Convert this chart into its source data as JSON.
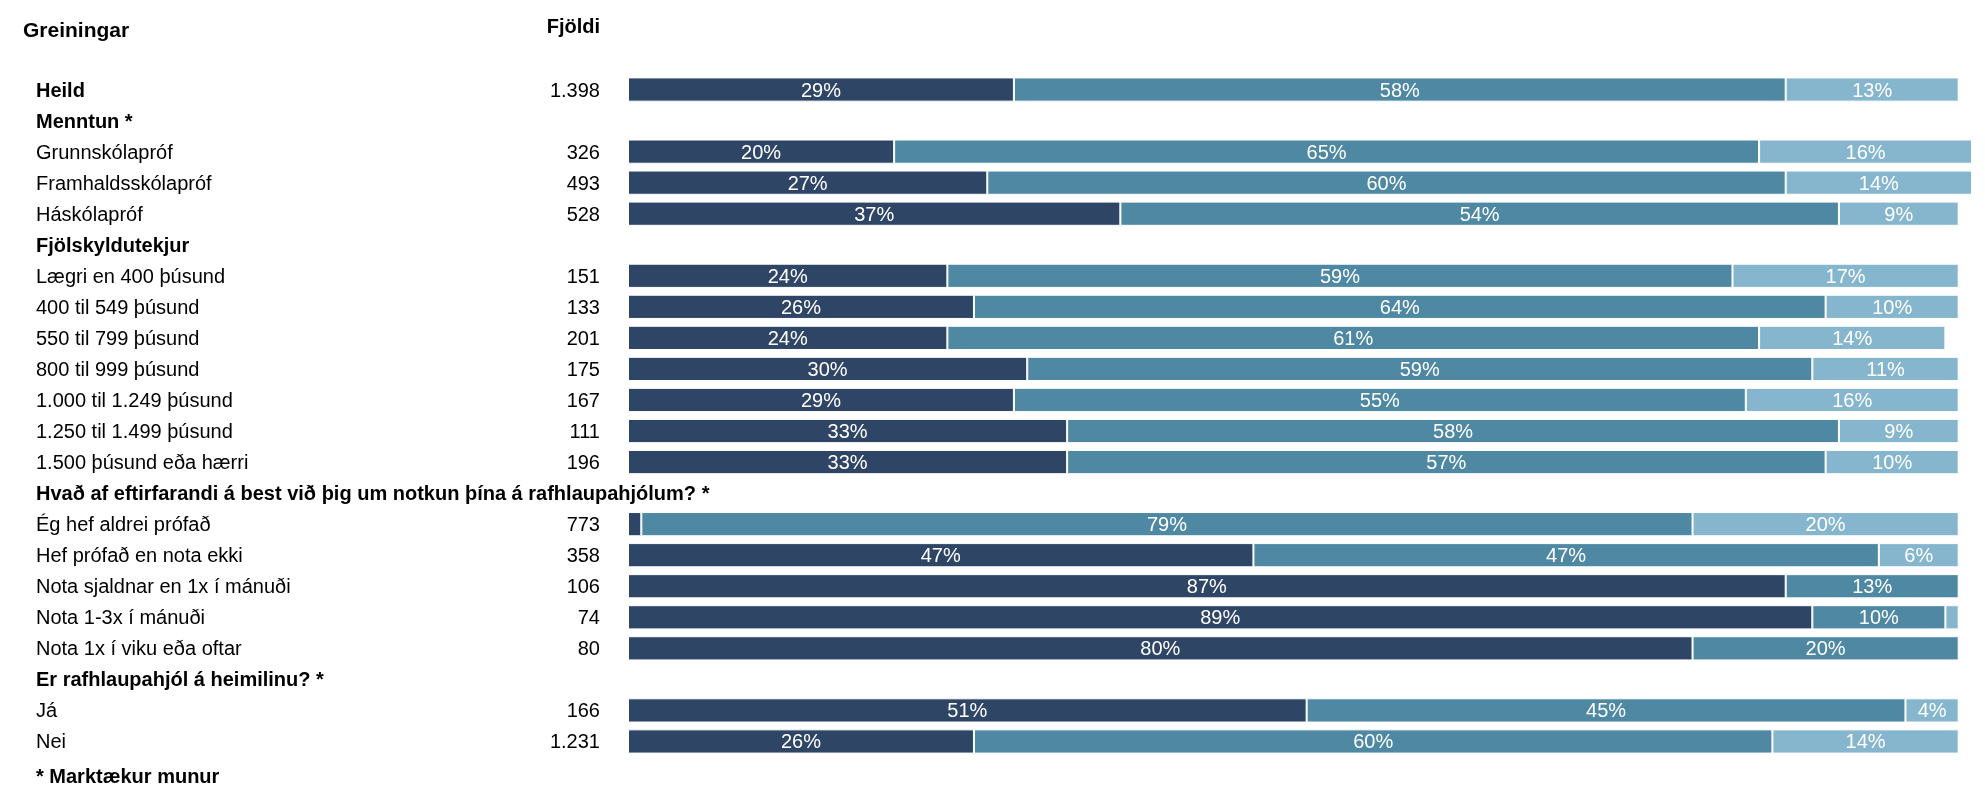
{
  "chart_data": {
    "type": "bar",
    "orientation": "horizontal",
    "stacked": true,
    "title": "Greiningar",
    "categories": [
      "Heild",
      "Menntun *",
      "Grunnskólapróf",
      "Framhaldsskólapróf",
      "Háskólapróf",
      "Fjölskyldutekjur",
      "Lægri en 400 þúsund",
      "400 til 549 þúsund",
      "550 til 799 þúsund",
      "800 til 999 þúsund",
      "1.000 til 1.249 þúsund",
      "1.250 til 1.499 þúsund",
      "1.500 þúsund eða hærri",
      "Hvað af eftirfarandi á best við þig um notkun þína á rafhlaupahjólum? *",
      "Ég hef aldrei prófað",
      "Hef prófað en nota ekki",
      "Nota sjaldnar en 1x í mánuði",
      "Nota 1-3x í mánuði",
      "Nota 1x í viku eða oftar",
      "Er rafhlaupahjól á heimilinu? *",
      "Já",
      "Nei"
    ],
    "series": [
      {
        "color": "#2e4566",
        "values": [
          29,
          null,
          20,
          27,
          37,
          null,
          24,
          26,
          24,
          30,
          29,
          33,
          33,
          null,
          1,
          47,
          87,
          89,
          80,
          null,
          51,
          26
        ],
        "value_labels": [
          "29%",
          null,
          "20%",
          "27%",
          "37%",
          null,
          "24%",
          "26%",
          "24%",
          "30%",
          "29%",
          "33%",
          "33%",
          null,
          null,
          "47%",
          "87%",
          "89%",
          "80%",
          null,
          "51%",
          "26%"
        ]
      },
      {
        "color": "#4e88a3",
        "values": [
          58,
          null,
          65,
          60,
          54,
          null,
          59,
          64,
          61,
          59,
          55,
          58,
          57,
          null,
          79,
          47,
          13,
          10,
          20,
          null,
          45,
          60
        ],
        "value_labels": [
          "58%",
          null,
          "65%",
          "60%",
          "54%",
          null,
          "59%",
          "64%",
          "61%",
          "59%",
          "55%",
          "58%",
          "57%",
          null,
          "79%",
          "47%",
          "13%",
          "10%",
          "20%",
          null,
          "45%",
          "60%"
        ]
      },
      {
        "color": "#86b6cd",
        "values": [
          13,
          null,
          16,
          14,
          9,
          null,
          17,
          10,
          14,
          11,
          16,
          9,
          10,
          null,
          20,
          6,
          null,
          1,
          null,
          null,
          4,
          14
        ],
        "value_labels": [
          "13%",
          null,
          "16%",
          "14%",
          "9%",
          null,
          "17%",
          "10%",
          "14%",
          "11%",
          "16%",
          "9%",
          "10%",
          null,
          "20%",
          "6%",
          null,
          null,
          null,
          null,
          "4%",
          "14%"
        ]
      }
    ],
    "annotations": [
      "Fjöldi",
      "1.398",
      "326",
      "493",
      "528",
      "151",
      "133",
      "201",
      "175",
      "167",
      "111",
      "196",
      "773",
      "358",
      "106",
      "74",
      "80",
      "166",
      "1.231",
      "* Marktækur munur"
    ]
  }
}
